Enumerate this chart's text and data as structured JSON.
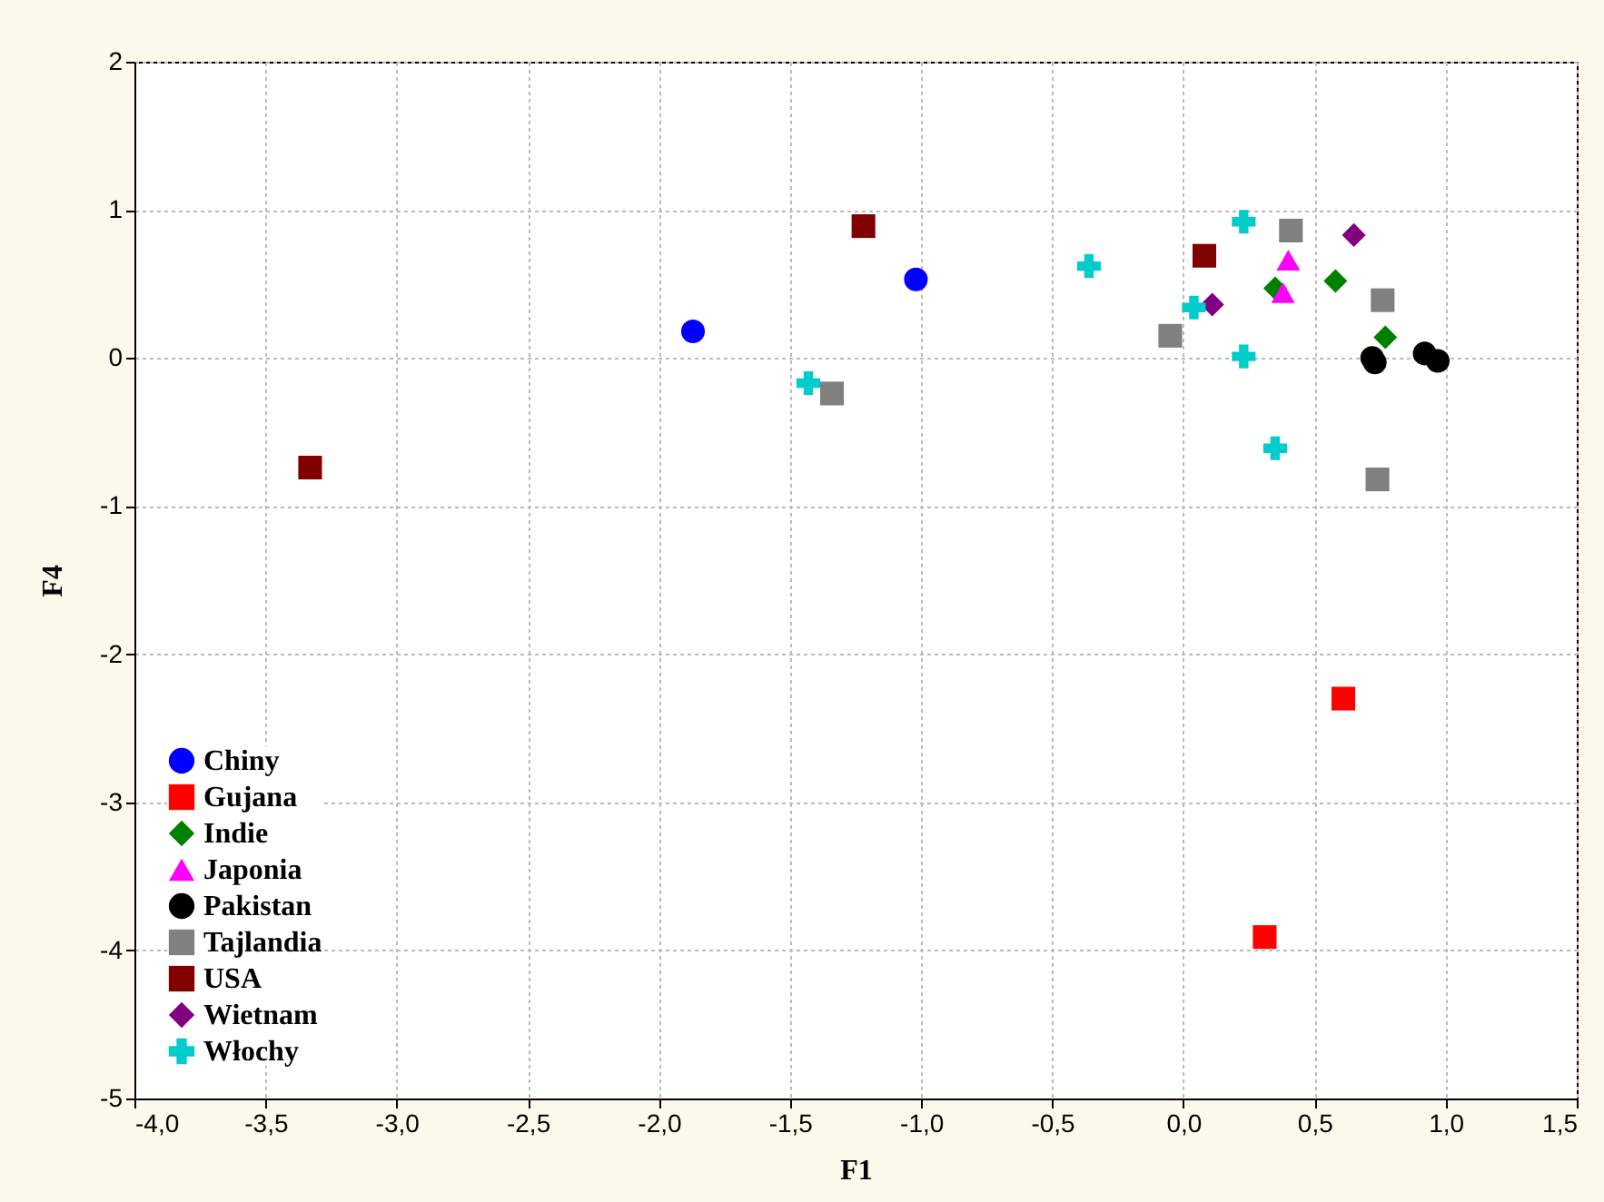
{
  "chart_data": {
    "type": "scatter",
    "xlabel": "F1",
    "ylabel": "F4",
    "xlim": [
      -4,
      1.5
    ],
    "ylim": [
      -5,
      2
    ],
    "xticks": [
      {
        "value": -4,
        "label": "-4,0"
      },
      {
        "value": -3.5,
        "label": "-3,5"
      },
      {
        "value": -3,
        "label": "-3,0"
      },
      {
        "value": -2.5,
        "label": "-2,5"
      },
      {
        "value": -2,
        "label": "-2,0"
      },
      {
        "value": -1.5,
        "label": "-1,5"
      },
      {
        "value": -1,
        "label": "-1,0"
      },
      {
        "value": -0.5,
        "label": "-0,5"
      },
      {
        "value": 0,
        "label": "0,0"
      },
      {
        "value": 0.5,
        "label": "0,5"
      },
      {
        "value": 1,
        "label": "1,0"
      },
      {
        "value": 1.5,
        "label": "1,5"
      }
    ],
    "yticks": [
      -5,
      -4,
      -3,
      -2,
      -1,
      0,
      1,
      2
    ],
    "grid": true,
    "legend": "bottom left",
    "series": [
      {
        "name": "Chiny",
        "color": "#0000ff",
        "marker": "circle",
        "x": [
          -1.87,
          -1.02
        ],
        "values": [
          0.18,
          0.53
        ]
      },
      {
        "name": "Gujana",
        "color": "#ff0000",
        "marker": "square",
        "x": [
          0.61,
          0.31
        ],
        "values": [
          -2.3,
          -3.91
        ]
      },
      {
        "name": "Indie",
        "color": "#008000",
        "marker": "diamond",
        "x": [
          0.35,
          0.58,
          0.77
        ],
        "values": [
          0.47,
          0.52,
          0.14
        ]
      },
      {
        "name": "Japonia",
        "color": "#ff00ff",
        "marker": "triangle",
        "x": [
          0.4,
          0.38
        ],
        "values": [
          0.66,
          0.44
        ]
      },
      {
        "name": "Pakistan",
        "color": "#000000",
        "marker": "circle",
        "x": [
          0.72,
          0.73,
          0.92,
          0.97
        ],
        "values": [
          0.0,
          -0.03,
          0.03,
          -0.02
        ]
      },
      {
        "name": "Tajlandia",
        "color": "#808080",
        "marker": "square",
        "x": [
          0.41,
          0.76,
          -0.05,
          -1.34,
          0.74
        ],
        "values": [
          0.86,
          0.39,
          0.15,
          -0.24,
          -0.82
        ]
      },
      {
        "name": "USA",
        "color": "#800000",
        "marker": "square",
        "x": [
          -3.33,
          -1.22,
          0.08
        ],
        "values": [
          -0.74,
          0.89,
          0.69
        ]
      },
      {
        "name": "Wietnam",
        "color": "#800080",
        "marker": "diamond",
        "x": [
          0.65,
          0.11
        ],
        "values": [
          0.83,
          0.36
        ]
      },
      {
        "name": "Włochy",
        "color": "#00cccc",
        "marker": "cross",
        "x": [
          -0.36,
          0.23,
          0.04,
          0.23,
          0.35,
          -1.43
        ],
        "values": [
          0.62,
          0.92,
          0.34,
          0.01,
          -0.61,
          -0.17
        ]
      }
    ]
  }
}
